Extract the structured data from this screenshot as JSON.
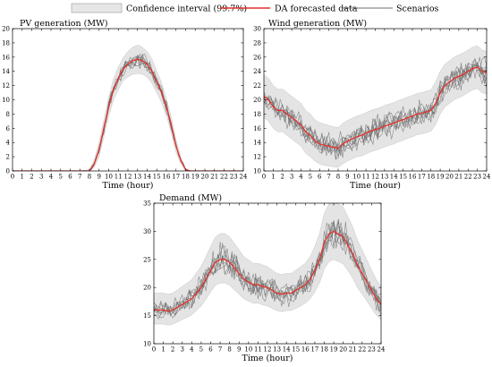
{
  "legend": {
    "items": [
      {
        "label": "Confidence interval (99.7%)",
        "kind": "band",
        "color": "#e6e6e6"
      },
      {
        "label": "DA forecasted data",
        "kind": "line",
        "color": "#e4322b"
      },
      {
        "label": "Scenarios",
        "kind": "line",
        "color": "#707070"
      }
    ]
  },
  "chart_data": [
    {
      "type": "line",
      "title": "PV generation (MW)",
      "xlabel": "Time (hour)",
      "ylabel": "",
      "xlim": [
        0,
        24
      ],
      "ylim": [
        0,
        20
      ],
      "xticks": [
        0,
        1,
        2,
        3,
        4,
        5,
        6,
        7,
        8,
        9,
        10,
        11,
        12,
        13,
        14,
        15,
        16,
        17,
        18,
        19,
        20,
        21,
        22,
        23,
        24
      ],
      "yticks": [
        0,
        2,
        4,
        6,
        8,
        10,
        12,
        14,
        16,
        18,
        20
      ],
      "x": [
        0,
        1,
        2,
        3,
        4,
        5,
        6,
        7,
        8,
        8.5,
        9,
        9.5,
        10,
        10.5,
        11,
        11.5,
        12,
        12.5,
        13,
        13.5,
        14,
        14.5,
        15,
        15.5,
        16,
        16.5,
        17,
        17.5,
        18,
        18.5,
        19,
        20,
        21,
        22,
        23,
        24
      ],
      "series": [
        {
          "name": "DA forecasted data",
          "values": [
            0,
            0,
            0,
            0,
            0,
            0,
            0,
            0,
            0,
            1,
            3,
            6,
            9,
            11.5,
            13,
            14.3,
            15,
            15.5,
            15.7,
            15.5,
            15,
            14,
            12.5,
            11,
            9,
            6.5,
            3.5,
            1.5,
            0.2,
            0,
            0,
            0,
            0,
            0,
            0,
            0
          ]
        },
        {
          "name": "Confidence interval upper",
          "values": [
            0,
            0,
            0,
            0,
            0,
            0,
            0,
            0,
            0.2,
            1.6,
            4,
            7.2,
            10.3,
            13,
            14.6,
            15.9,
            16.8,
            17.4,
            17.7,
            17.4,
            16.8,
            15.7,
            14,
            12.4,
            10.2,
            7.6,
            4.4,
            2,
            0.4,
            0,
            0,
            0,
            0,
            0,
            0,
            0
          ]
        },
        {
          "name": "Confidence interval lower",
          "values": [
            0,
            0,
            0,
            0,
            0,
            0,
            0,
            0,
            0,
            0.5,
            2,
            4.8,
            7.7,
            10,
            11.4,
            12.7,
            13.2,
            13.6,
            13.7,
            13.6,
            13.2,
            12.3,
            11,
            9.6,
            7.8,
            5.4,
            2.6,
            1,
            0,
            0,
            0,
            0,
            0,
            0,
            0,
            0
          ]
        }
      ]
    },
    {
      "type": "line",
      "title": "Wind generation (MW)",
      "xlabel": "Time (hour)",
      "ylabel": "",
      "xlim": [
        0,
        24
      ],
      "ylim": [
        10,
        30
      ],
      "xticks": [
        0,
        1,
        2,
        3,
        4,
        5,
        6,
        7,
        8,
        9,
        10,
        11,
        12,
        13,
        14,
        15,
        16,
        17,
        18,
        19,
        20,
        21,
        22,
        23,
        24
      ],
      "yticks": [
        10,
        12,
        14,
        16,
        18,
        20,
        22,
        24,
        26,
        28,
        30
      ],
      "x": [
        0,
        0.5,
        1,
        1.5,
        2,
        2.5,
        3,
        3.5,
        4,
        4.5,
        5,
        5.5,
        6,
        6.5,
        7,
        7.5,
        8,
        8.5,
        9,
        9.5,
        10,
        10.5,
        11,
        11.5,
        12,
        12.5,
        13,
        13.5,
        14,
        14.5,
        15,
        15.5,
        16,
        16.5,
        17,
        17.5,
        18,
        18.5,
        19,
        19.5,
        20,
        20.5,
        21,
        21.5,
        22,
        22.5,
        23,
        23.5,
        24
      ],
      "series": [
        {
          "name": "DA forecasted data",
          "values": [
            20.5,
            20,
            19,
            18.5,
            18.5,
            18,
            17.5,
            17,
            16.5,
            15.5,
            15,
            14.2,
            13.8,
            13.6,
            13.5,
            13.3,
            13.2,
            13.8,
            14.2,
            14.5,
            14.8,
            15,
            15.3,
            15.6,
            15.8,
            16,
            16.3,
            16.5,
            16.7,
            17,
            17.2,
            17.5,
            17.7,
            18,
            18.1,
            18.3,
            18.5,
            19.5,
            21,
            22,
            22.5,
            23,
            23.3,
            23.6,
            24,
            24.4,
            24.6,
            24,
            23.8
          ]
        },
        {
          "name": "Confidence interval upper",
          "values": [
            23.5,
            23,
            22,
            21.5,
            21.5,
            21,
            20.5,
            20,
            19.5,
            18.5,
            18,
            17.2,
            16.8,
            16.6,
            16.4,
            16.2,
            16.1,
            16.7,
            17.1,
            17.4,
            17.7,
            17.9,
            18.2,
            18.5,
            18.7,
            18.9,
            19.2,
            19.4,
            19.6,
            19.9,
            20.1,
            20.4,
            20.6,
            20.9,
            21,
            21.2,
            21.4,
            22.5,
            24,
            25,
            25.5,
            26,
            26.3,
            26.6,
            27,
            27.4,
            27.6,
            27,
            26.8
          ]
        },
        {
          "name": "Confidence interval lower",
          "values": [
            17.5,
            17,
            16,
            15.5,
            15.5,
            15,
            14.5,
            14,
            13.5,
            12.5,
            12,
            11.4,
            11,
            10.8,
            10.7,
            10.6,
            10.5,
            11,
            11.4,
            11.7,
            12,
            12.1,
            12.4,
            12.7,
            12.9,
            13.1,
            13.4,
            13.6,
            13.8,
            14.1,
            14.3,
            14.6,
            14.8,
            15.1,
            15.2,
            15.4,
            15.6,
            16.5,
            18,
            19,
            19.5,
            20,
            20.3,
            20.6,
            21,
            21.4,
            21.6,
            21,
            20.8
          ]
        }
      ]
    },
    {
      "type": "line",
      "title": "Demand (MW)",
      "xlabel": "Time (hour)",
      "ylabel": "",
      "xlim": [
        0,
        24
      ],
      "ylim": [
        10,
        35
      ],
      "xticks": [
        0,
        1,
        2,
        3,
        4,
        5,
        6,
        7,
        8,
        9,
        10,
        11,
        12,
        13,
        14,
        15,
        16,
        17,
        18,
        19,
        20,
        21,
        22,
        23,
        24
      ],
      "yticks": [
        10,
        15,
        20,
        25,
        30,
        35
      ],
      "x": [
        0,
        0.5,
        1,
        1.5,
        2,
        2.5,
        3,
        3.5,
        4,
        4.5,
        5,
        5.5,
        6,
        6.5,
        7,
        7.5,
        8,
        8.5,
        9,
        9.5,
        10,
        10.5,
        11,
        11.5,
        12,
        12.5,
        13,
        13.5,
        14,
        14.5,
        15,
        15.5,
        16,
        16.5,
        17,
        17.5,
        18,
        18.5,
        19,
        19.5,
        20,
        20.5,
        21,
        21.5,
        22,
        22.5,
        23,
        23.5,
        24
      ],
      "series": [
        {
          "name": "DA forecasted data",
          "values": [
            16,
            16,
            16,
            15.8,
            16,
            16.5,
            17,
            17.5,
            18,
            19,
            20,
            21.5,
            23,
            24.5,
            25,
            25,
            24.5,
            23.5,
            22.5,
            21.5,
            21,
            20.5,
            20.5,
            20.2,
            20,
            19.5,
            19,
            18.8,
            19,
            19,
            19.5,
            20,
            20.5,
            21.5,
            23,
            25,
            28,
            29.5,
            30,
            29.5,
            29,
            27.5,
            26,
            24,
            22.5,
            21,
            19.5,
            18,
            17
          ]
        },
        {
          "name": "Confidence interval upper",
          "values": [
            19,
            19,
            19,
            18.8,
            19,
            19.6,
            20.2,
            20.8,
            21.4,
            22.6,
            23.8,
            25.5,
            27.3,
            29,
            29.6,
            29.6,
            29,
            27.9,
            26.7,
            25.5,
            24.9,
            24.3,
            24.3,
            24,
            23.7,
            23.1,
            22.5,
            22.3,
            22.5,
            22.5,
            23.1,
            23.7,
            24.3,
            25.5,
            27.3,
            29.6,
            33.2,
            34.9,
            35,
            34.9,
            34.3,
            32.6,
            30.8,
            28.4,
            26.7,
            24.9,
            23.1,
            21.4,
            20.2
          ]
        },
        {
          "name": "Confidence interval lower",
          "values": [
            13.5,
            13.5,
            13.5,
            13.3,
            13.5,
            13.9,
            14.3,
            14.7,
            15.1,
            15.9,
            16.7,
            17.9,
            19.2,
            20.4,
            20.8,
            20.8,
            20.4,
            19.6,
            18.8,
            18,
            17.6,
            17.2,
            17.2,
            16.9,
            16.7,
            16.3,
            15.9,
            15.7,
            15.9,
            15.9,
            16.3,
            16.7,
            17.2,
            18,
            19.2,
            20.8,
            23.3,
            24.6,
            25,
            24.6,
            24.2,
            23,
            21.7,
            20,
            18.8,
            17.6,
            16.3,
            15.1,
            14.2
          ]
        }
      ]
    }
  ]
}
